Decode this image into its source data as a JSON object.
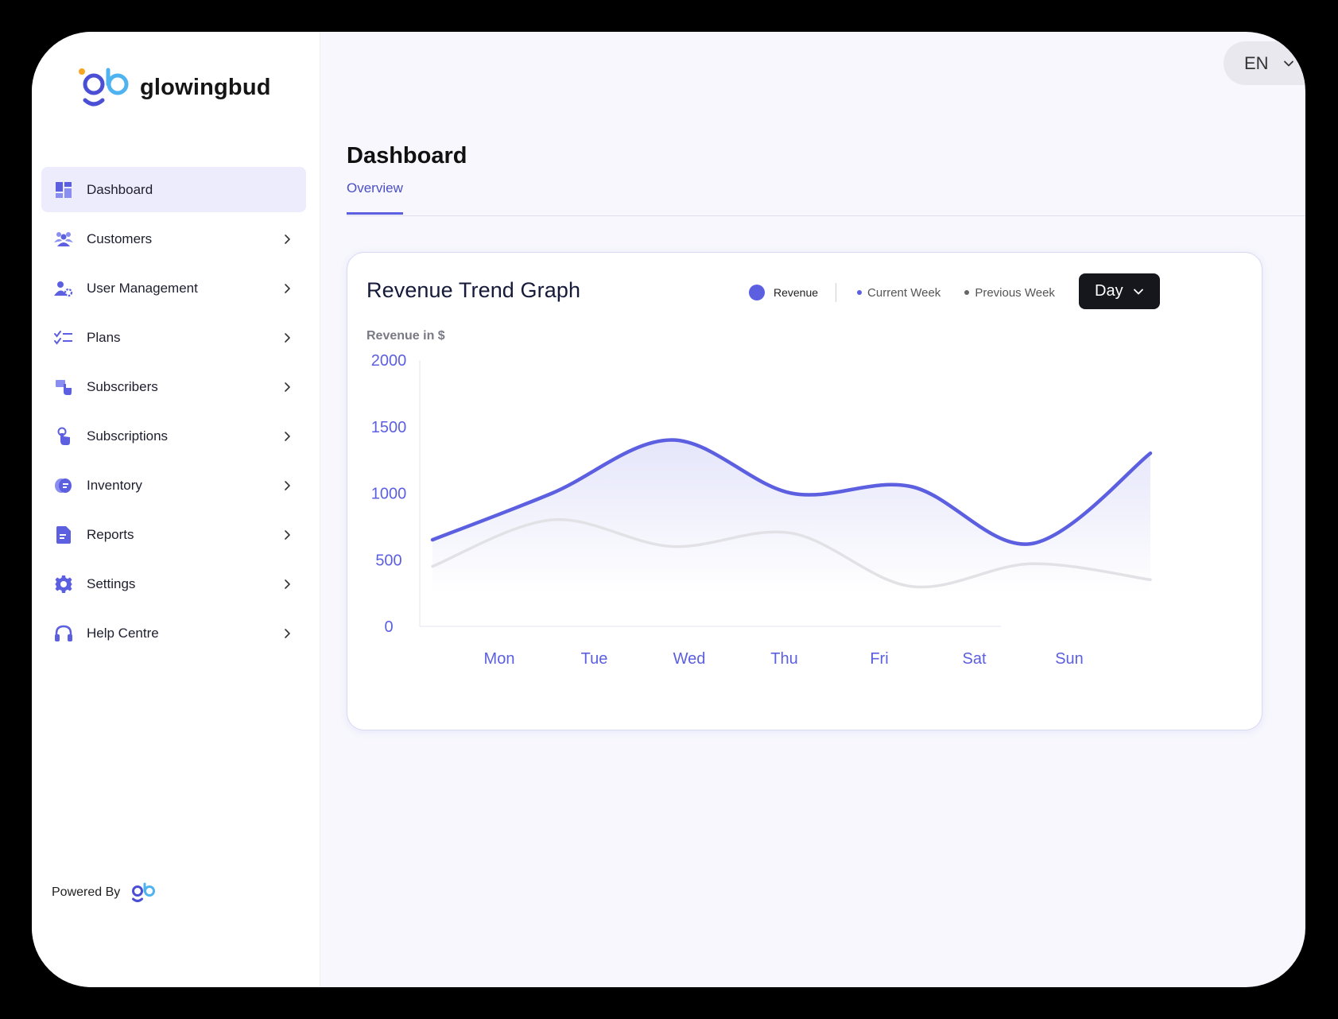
{
  "brand": {
    "name": "glowingbud"
  },
  "sidebar": {
    "items": [
      {
        "label": "Dashboard",
        "icon": "dashboard-icon",
        "active": true,
        "has_chevron": false
      },
      {
        "label": "Customers",
        "icon": "customers-icon",
        "has_chevron": true
      },
      {
        "label": "User Management",
        "icon": "user-management-icon",
        "has_chevron": true
      },
      {
        "label": "Plans",
        "icon": "plans-icon",
        "has_chevron": true
      },
      {
        "label": "Subscribers",
        "icon": "subscribers-icon",
        "has_chevron": true
      },
      {
        "label": "Subscriptions",
        "icon": "subscriptions-icon",
        "has_chevron": true
      },
      {
        "label": "Inventory",
        "icon": "inventory-icon",
        "has_chevron": true
      },
      {
        "label": "Reports",
        "icon": "reports-icon",
        "has_chevron": true
      },
      {
        "label": "Settings",
        "icon": "settings-icon",
        "has_chevron": true
      },
      {
        "label": "Help Centre",
        "icon": "headset-icon",
        "has_chevron": true
      }
    ],
    "powered_by": "Powered By"
  },
  "header": {
    "language": "EN"
  },
  "main": {
    "title": "Dashboard",
    "tabs": [
      {
        "label": "Overview",
        "active": true
      }
    ]
  },
  "card": {
    "title": "Revenue Trend Graph",
    "legend": {
      "revenue": "Revenue",
      "current_week": "Current Week",
      "previous_week": "Previous Week"
    },
    "period": "Day"
  },
  "colors": {
    "accent": "#5b5fe0",
    "previous_week": "#e2e2e6",
    "active_nav_bg": "#ececfc",
    "day_button_bg": "#15171c"
  },
  "chart_data": {
    "type": "line",
    "ylabel": "Revenue in $",
    "ylim": [
      0,
      2000
    ],
    "yticks": [
      2000,
      1500,
      1000,
      500,
      0
    ],
    "categories": [
      "Mon",
      "Tue",
      "Wed",
      "Thu",
      "Fri",
      "Sat",
      "Sun"
    ],
    "series": [
      {
        "name": "Current Week",
        "color": "#5b5fe0",
        "values": [
          650,
          1000,
          1400,
          1000,
          1050,
          620,
          1300
        ]
      },
      {
        "name": "Previous Week",
        "color": "#e2e2e6",
        "values": [
          450,
          800,
          600,
          700,
          300,
          470,
          350
        ]
      }
    ]
  }
}
